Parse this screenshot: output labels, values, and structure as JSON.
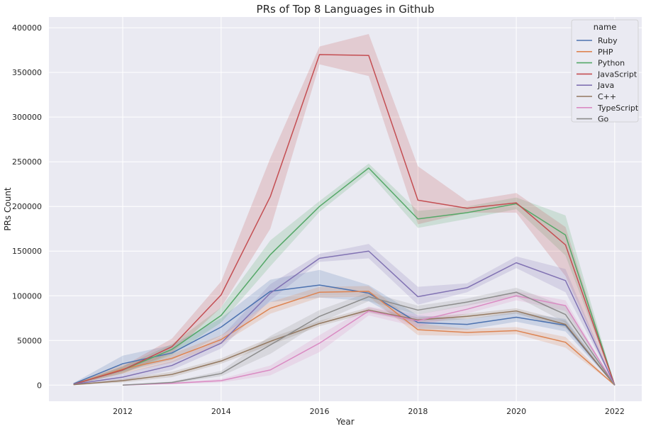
{
  "chart_data": {
    "type": "line",
    "title": "PRs of Top 8 Languages in Github",
    "xlabel": "Year",
    "ylabel": "PRs Count",
    "xlim": [
      2010.5,
      2022.55
    ],
    "ylim": [
      -18000,
      412000
    ],
    "xticks": [
      "2012",
      "2014",
      "2016",
      "2018",
      "2020",
      "2022"
    ],
    "yticks": [
      "0",
      "50000",
      "100000",
      "150000",
      "200000",
      "250000",
      "300000",
      "350000",
      "400000"
    ],
    "grid": true,
    "legend": {
      "title": "name",
      "placement": "top-right"
    },
    "series": [
      {
        "name": "Ruby",
        "color": "#4c72b0",
        "x": [
          2011,
          2012,
          2013,
          2014,
          2015,
          2016,
          2017,
          2018,
          2019,
          2020,
          2021,
          2022
        ],
        "y": [
          1500,
          24000,
          36000,
          65000,
          105000,
          112000,
          103000,
          70000,
          68000,
          76000,
          67000,
          0
        ],
        "lower": [
          500,
          15000,
          28000,
          55000,
          93000,
          98000,
          94000,
          63000,
          62000,
          71000,
          60000,
          0
        ],
        "upper": [
          2500,
          33000,
          45000,
          75000,
          118000,
          129000,
          112000,
          78000,
          74000,
          82000,
          74000,
          0
        ]
      },
      {
        "name": "PHP",
        "color": "#dd8452",
        "x": [
          2011,
          2012,
          2013,
          2014,
          2015,
          2016,
          2017,
          2018,
          2019,
          2020,
          2021,
          2022
        ],
        "y": [
          1000,
          18000,
          30000,
          51000,
          86000,
          104000,
          105000,
          62000,
          59000,
          61000,
          48000,
          0
        ],
        "lower": [
          500,
          13000,
          25000,
          46000,
          80000,
          98000,
          99000,
          56000,
          55000,
          57000,
          42000,
          0
        ],
        "upper": [
          1500,
          23000,
          35000,
          56000,
          93000,
          110000,
          111000,
          69000,
          63000,
          65000,
          54000,
          0
        ]
      },
      {
        "name": "Python",
        "color": "#55a868",
        "x": [
          2011,
          2012,
          2013,
          2014,
          2015,
          2016,
          2017,
          2018,
          2019,
          2020,
          2021,
          2022
        ],
        "y": [
          1000,
          17000,
          40000,
          78000,
          146000,
          200000,
          243000,
          186000,
          193000,
          203000,
          168000,
          0
        ],
        "lower": [
          500,
          13000,
          34000,
          70000,
          133000,
          194000,
          238000,
          176000,
          186000,
          197000,
          145000,
          0
        ],
        "upper": [
          1500,
          21000,
          46000,
          87000,
          162000,
          206000,
          248000,
          195000,
          200000,
          210000,
          190000,
          0
        ]
      },
      {
        "name": "JavaScript",
        "color": "#c44e52",
        "x": [
          2011,
          2012,
          2013,
          2014,
          2015,
          2016,
          2017,
          2018,
          2019,
          2020,
          2021,
          2022
        ],
        "y": [
          1000,
          17000,
          43000,
          101000,
          211000,
          370000,
          369000,
          207000,
          198000,
          204000,
          157000,
          0
        ],
        "lower": [
          500,
          13000,
          36000,
          87000,
          175000,
          359000,
          346000,
          180000,
          193000,
          193000,
          122000,
          0
        ],
        "upper": [
          1500,
          21000,
          52000,
          116000,
          254000,
          379000,
          393000,
          245000,
          206000,
          215000,
          177000,
          0
        ]
      },
      {
        "name": "Java",
        "color": "#8172b3",
        "x": [
          2011,
          2012,
          2013,
          2014,
          2015,
          2016,
          2017,
          2018,
          2019,
          2020,
          2021,
          2022
        ],
        "y": [
          1000,
          9000,
          22000,
          47000,
          103000,
          142000,
          150000,
          99000,
          109000,
          137000,
          117000,
          0
        ],
        "lower": [
          500,
          5000,
          17000,
          41000,
          95000,
          138000,
          142000,
          90000,
          104000,
          131000,
          104000,
          0
        ],
        "upper": [
          1500,
          13000,
          27000,
          54000,
          113000,
          147000,
          158000,
          110000,
          114000,
          144000,
          130000,
          0
        ]
      },
      {
        "name": "C++",
        "color": "#937860",
        "x": [
          2011,
          2012,
          2013,
          2014,
          2015,
          2016,
          2017,
          2018,
          2019,
          2020,
          2021,
          2022
        ],
        "y": [
          500,
          5000,
          12000,
          27000,
          49000,
          69000,
          84000,
          73000,
          77000,
          83000,
          68000,
          0
        ],
        "lower": [
          200,
          3000,
          9000,
          24000,
          45000,
          66000,
          81000,
          70000,
          74000,
          80000,
          64000,
          0
        ],
        "upper": [
          800,
          7000,
          15000,
          30000,
          53000,
          72000,
          87000,
          76000,
          80000,
          86000,
          72000,
          0
        ]
      },
      {
        "name": "TypeScript",
        "color": "#da8bc3",
        "x": [
          2012,
          2013,
          2014,
          2015,
          2016,
          2017,
          2018,
          2019,
          2020,
          2021,
          2022
        ],
        "y": [
          0,
          2000,
          5000,
          17000,
          47000,
          83000,
          72000,
          85000,
          100000,
          89000,
          0
        ],
        "lower": [
          0,
          1000,
          3000,
          11000,
          37000,
          78000,
          65000,
          80000,
          95000,
          83000,
          0
        ],
        "upper": [
          0,
          3000,
          7000,
          22000,
          56000,
          88000,
          79000,
          90000,
          105000,
          95000,
          0
        ]
      },
      {
        "name": "Go",
        "color": "#8c8c8c",
        "x": [
          2012,
          2013,
          2014,
          2015,
          2016,
          2017,
          2018,
          2019,
          2020,
          2021,
          2022
        ],
        "y": [
          0,
          3000,
          13000,
          45000,
          77000,
          99000,
          84000,
          93000,
          104000,
          79000,
          0
        ],
        "lower": [
          0,
          2000,
          10000,
          35000,
          70000,
          94000,
          79000,
          89000,
          99000,
          70000,
          0
        ],
        "upper": [
          0,
          4000,
          16000,
          55000,
          84000,
          104000,
          89000,
          97000,
          109000,
          88000,
          0
        ]
      }
    ]
  }
}
